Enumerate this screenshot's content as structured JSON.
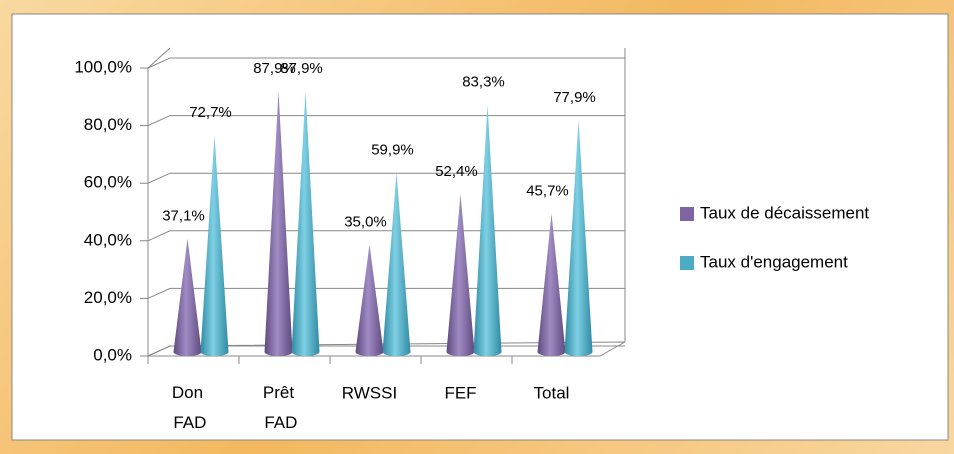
{
  "chart_data": {
    "type": "cone",
    "categories": [
      "Don FAD",
      "Prêt FAD",
      "RWSSI",
      "FEF",
      "Total"
    ],
    "series": [
      {
        "name": "Taux de décaissement",
        "color": "#8064a2",
        "values": [
          37.1,
          87.9,
          35.0,
          52.4,
          45.7
        ],
        "value_labels": [
          "37,1%",
          "87,9%",
          "35,0%",
          "52,4%",
          "45,7%"
        ]
      },
      {
        "name": "Taux d'engagement",
        "color": "#4bacc6",
        "values": [
          72.7,
          87.9,
          59.9,
          83.3,
          77.9
        ],
        "value_labels": [
          "72,7%",
          "87,9%",
          "59,9%",
          "83,3%",
          "77,9%"
        ]
      }
    ],
    "ylim": [
      0,
      100
    ],
    "yticks": [
      {
        "value": 0,
        "label": "0,0%"
      },
      {
        "value": 20,
        "label": "20,0%"
      },
      {
        "value": 40,
        "label": "40,0%"
      },
      {
        "value": 60,
        "label": "60,0%"
      },
      {
        "value": 80,
        "label": "80,0%"
      },
      {
        "value": 100,
        "label": "100,0%"
      }
    ],
    "grid": true,
    "legend": "right"
  }
}
